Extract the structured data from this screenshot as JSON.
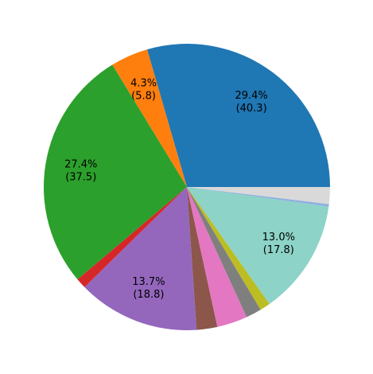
{
  "chart_data": {
    "type": "pie",
    "title": "",
    "start_angle_deg": 0,
    "direction": "counterclockwise",
    "slices": [
      {
        "value": 40.3,
        "color": "#1f77b4",
        "label_pct": "29.4%",
        "label_val": "(40.3)"
      },
      {
        "value": 5.8,
        "color": "#ff7f0e",
        "label_pct": "4.3%",
        "label_val": "(5.8)"
      },
      {
        "value": 37.5,
        "color": "#2ca02c",
        "label_pct": "27.4%",
        "label_val": "(37.5)"
      },
      {
        "value": 1.6,
        "color": "#d62728",
        "label_pct": "",
        "label_val": ""
      },
      {
        "value": 18.8,
        "color": "#9467bd",
        "label_pct": "13.7%",
        "label_val": "(18.8)"
      },
      {
        "value": 3.2,
        "color": "#8c564b",
        "label_pct": "",
        "label_val": ""
      },
      {
        "value": 4.7,
        "color": "#e377c2",
        "label_pct": "",
        "label_val": ""
      },
      {
        "value": 2.4,
        "color": "#7f7f7f",
        "label_pct": "",
        "label_val": ""
      },
      {
        "value": 1.6,
        "color": "#bcbd22",
        "label_pct": "",
        "label_val": ""
      },
      {
        "value": 17.8,
        "color": "#8dd3c7",
        "label_pct": "13.0%",
        "label_val": "(17.8)"
      },
      {
        "value": 0.4,
        "color": "#8fb0de",
        "label_pct": "",
        "label_val": ""
      },
      {
        "value": 2.6,
        "color": "#d9d9d9",
        "label_pct": "",
        "label_val": ""
      }
    ]
  }
}
